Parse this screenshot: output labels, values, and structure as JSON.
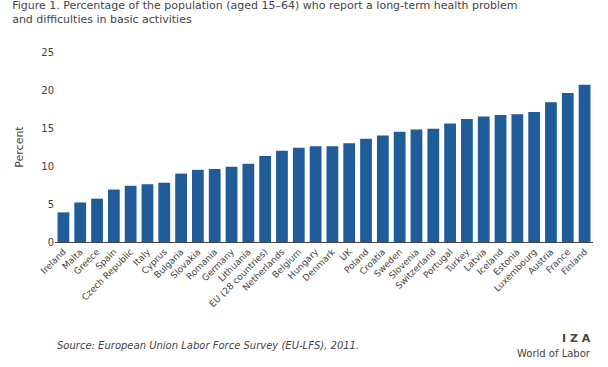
{
  "chart_data": {
    "type": "bar",
    "title": "Figure 1. Percentage of the population (aged 15–64) who report a long-term health problem",
    "subtitle": "and difficulties in basic activities",
    "ylabel": "Percent",
    "categories": [
      "Ireland",
      "Malta",
      "Greece",
      "Spain",
      "Czech Republic",
      "Italy",
      "Cyprus",
      "Bulgaria",
      "Slovakia",
      "Romania",
      "Germany",
      "Lithuania",
      "EU (28 countries)",
      "Netherlands",
      "Belgium",
      "Hungary",
      "Denmark",
      "UK",
      "Poland",
      "Croatia",
      "Sweden",
      "Slovenia",
      "Switzerland",
      "Portugal",
      "Turkey",
      "Latvia",
      "Iceland",
      "Estonia",
      "Luxembourg",
      "Austria",
      "France",
      "Finland"
    ],
    "values": [
      3.9,
      5.2,
      5.7,
      6.9,
      7.4,
      7.6,
      7.8,
      9.0,
      9.5,
      9.6,
      9.9,
      10.3,
      11.3,
      12.0,
      12.4,
      12.6,
      12.6,
      13.0,
      13.6,
      14.0,
      14.5,
      14.8,
      14.9,
      15.6,
      16.2,
      16.5,
      16.7,
      16.8,
      17.1,
      18.4,
      19.6,
      20.7
    ],
    "color": "#1F5C99",
    "ylim": [
      0,
      25
    ],
    "yticks": [
      0,
      5,
      10,
      15,
      20,
      25
    ],
    "grid": false,
    "annotations": [
      "Source: European Union Labor Force Survey (EU-LFS), 2011.",
      "I Z A",
      "World of Labor"
    ]
  }
}
